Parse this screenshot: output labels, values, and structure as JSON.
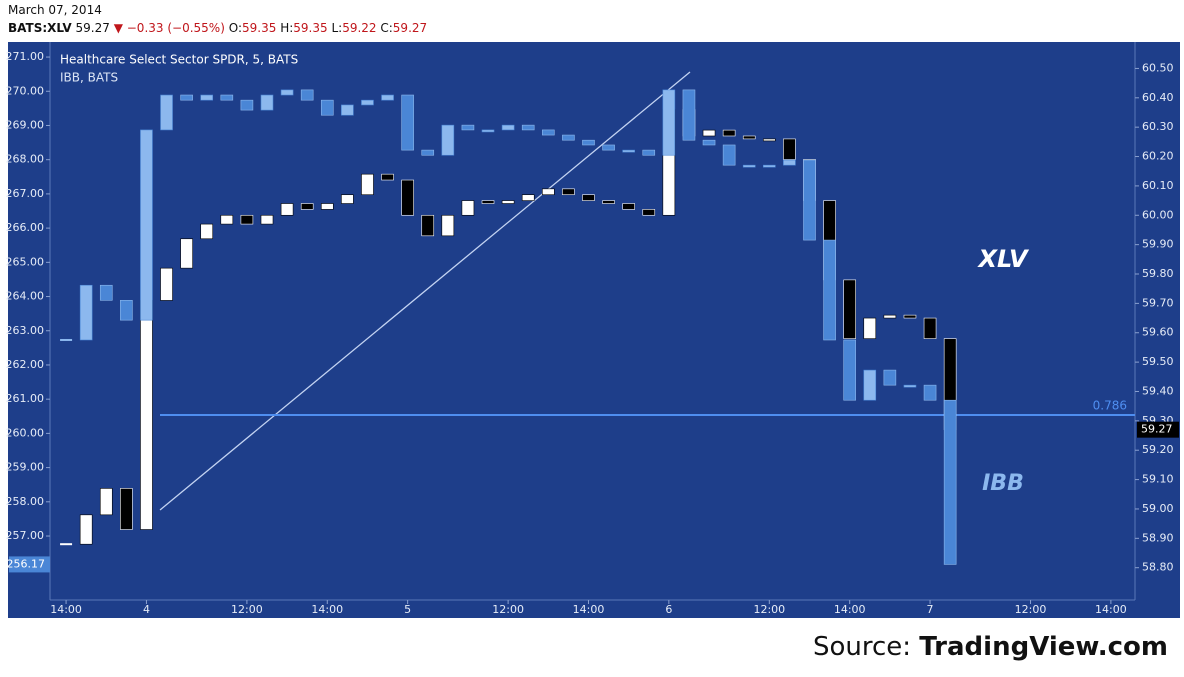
{
  "header": {
    "date": "March 07, 2014",
    "symbol": "BATS:XLV",
    "price": "59.27",
    "arrow": "▼",
    "change": "−0.33 (−0.55%)",
    "o_label": "O:",
    "o": "59.35",
    "h_label": "H:",
    "h": "59.35",
    "l_label": "L:",
    "l": "59.22",
    "c_label": "C:",
    "c": "59.27"
  },
  "source_label": "Source:",
  "source_name": "TradingView.com",
  "chart_data": {
    "type": "candlestick",
    "title": "Healthcare Select Sector SPDR, 5, BATS",
    "subtitle": "IBB, BATS",
    "x": [
      0,
      1,
      2,
      3,
      4,
      5,
      6,
      7,
      8,
      9,
      10,
      11,
      12,
      13,
      14,
      15,
      16,
      17,
      18,
      19,
      20,
      21,
      22,
      23,
      24,
      25,
      26,
      27,
      28,
      29,
      30,
      31,
      32,
      33,
      34,
      35,
      36,
      37,
      38,
      39,
      40,
      41,
      42,
      43,
      44
    ],
    "xlim": [
      -0.8,
      53.2
    ],
    "xticks": [
      {
        "value": 0,
        "label": "14:00"
      },
      {
        "value": 4,
        "label": "4"
      },
      {
        "value": 9,
        "label": "12:00"
      },
      {
        "value": 13,
        "label": "14:00"
      },
      {
        "value": 17,
        "label": "5"
      },
      {
        "value": 22,
        "label": "12:00"
      },
      {
        "value": 26,
        "label": "14:00"
      },
      {
        "value": 30,
        "label": "6"
      },
      {
        "value": 35,
        "label": "12:00"
      },
      {
        "value": 39,
        "label": "14:00"
      },
      {
        "value": 43,
        "label": "7"
      },
      {
        "value": 48,
        "label": "12:00"
      },
      {
        "value": 52,
        "label": "14:00"
      }
    ],
    "ylim": [
      255.13,
      271.44
    ],
    "yticks": [
      {
        "value": 257,
        "label": "257.00"
      },
      {
        "value": 258,
        "label": "258.00"
      },
      {
        "value": 259,
        "label": "259.00"
      },
      {
        "value": 260,
        "label": "260.00"
      },
      {
        "value": 261,
        "label": "261.00"
      },
      {
        "value": 262,
        "label": "262.00"
      },
      {
        "value": 263,
        "label": "263.00"
      },
      {
        "value": 264,
        "label": "264.00"
      },
      {
        "value": 265,
        "label": "265.00"
      },
      {
        "value": 266,
        "label": "266.00"
      },
      {
        "value": 267,
        "label": "267.00"
      },
      {
        "value": 268,
        "label": "268.00"
      },
      {
        "value": 269,
        "label": "269.00"
      },
      {
        "value": 270,
        "label": "270.00"
      },
      {
        "value": 271,
        "label": "271.00"
      }
    ],
    "y2lim": [
      58.69,
      60.59
    ],
    "y2ticks": [
      {
        "value": 58.8,
        "label": "58.80"
      },
      {
        "value": 58.9,
        "label": "58.90"
      },
      {
        "value": 59,
        "label": "59.00"
      },
      {
        "value": 59.1,
        "label": "59.10"
      },
      {
        "value": 59.2,
        "label": "59.20"
      },
      {
        "value": 59.3,
        "label": "59.30"
      },
      {
        "value": 59.4,
        "label": "59.40"
      },
      {
        "value": 59.5,
        "label": "59.50"
      },
      {
        "value": 59.6,
        "label": "59.60"
      },
      {
        "value": 59.7,
        "label": "59.70"
      },
      {
        "value": 59.8,
        "label": "59.80"
      },
      {
        "value": 59.9,
        "label": "59.90"
      },
      {
        "value": 60,
        "label": "60.00"
      },
      {
        "value": 60.1,
        "label": "60.10"
      },
      {
        "value": 60.2,
        "label": "60.20"
      },
      {
        "value": 60.3,
        "label": "60.30"
      },
      {
        "value": 60.4,
        "label": "60.40"
      },
      {
        "value": 60.5,
        "label": "60.50"
      }
    ],
    "series": [
      {
        "name": "XLV",
        "axis": "y2",
        "up_color": "#ffffff",
        "down_color": "#000000",
        "label_color": "#ffffff",
        "last": 59.27,
        "last_color": "#000000",
        "values": [
          58.88,
          58.98,
          59.07,
          58.93,
          59.71,
          59.82,
          59.92,
          59.97,
          60.0,
          59.97,
          60.0,
          60.04,
          60.02,
          60.04,
          60.07,
          60.14,
          60.12,
          60.0,
          59.93,
          60.0,
          60.05,
          60.04,
          60.05,
          60.07,
          60.09,
          60.07,
          60.05,
          60.04,
          60.02,
          60.0,
          60.36,
          60.27,
          60.29,
          60.27,
          60.26,
          60.26,
          60.19,
          60.05,
          59.78,
          59.58,
          59.65,
          59.66,
          59.65,
          59.58,
          59.27
        ]
      },
      {
        "name": "IBB",
        "up_color": "#8cb8ee",
        "down_color": "#4a86d6",
        "label_color": "#8cb8ee",
        "last": 256.17,
        "last_color": "#4a86d6",
        "values": [
          262.73,
          264.33,
          263.89,
          263.31,
          268.87,
          269.89,
          269.74,
          269.89,
          269.74,
          269.45,
          269.89,
          270.04,
          269.74,
          269.3,
          269.6,
          269.74,
          269.89,
          268.28,
          268.13,
          269.01,
          268.87,
          268.87,
          269.01,
          268.87,
          268.72,
          268.57,
          268.43,
          268.28,
          268.28,
          268.13,
          270.04,
          268.57,
          268.43,
          267.84,
          267.84,
          267.84,
          267.99,
          265.65,
          262.73,
          260.97,
          261.85,
          261.41,
          261.41,
          260.97,
          256.17
        ]
      }
    ],
    "fib_ratio": 0.786,
    "fib_price": 59.32,
    "fib_color": "#4f8ef0",
    "background": "#1e3e8a"
  }
}
